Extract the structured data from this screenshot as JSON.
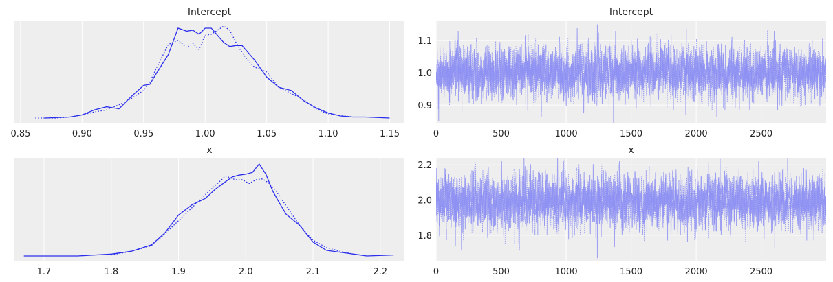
{
  "colors": {
    "background": "#eeeeee",
    "grid": "#ffffff",
    "line": "#2a2eec",
    "trace": "#8a8cf2"
  },
  "chart_data": [
    {
      "type": "line",
      "kind": "density",
      "title": "Intercept",
      "xlim": [
        0.845,
        1.162
      ],
      "xticks": [
        "0.85",
        "0.90",
        "0.95",
        "1.00",
        "1.05",
        "1.10",
        "1.15"
      ],
      "xtick_values": [
        0.85,
        0.9,
        0.95,
        1.0,
        1.05,
        1.1,
        1.15
      ],
      "y_ticks_shown": false,
      "series": [
        {
          "style": "solid",
          "x": [
            0.87,
            0.89,
            0.9,
            0.91,
            0.92,
            0.93,
            0.94,
            0.95,
            0.955,
            0.96,
            0.97,
            0.978,
            0.985,
            0.99,
            0.995,
            1.0,
            1.005,
            1.01,
            1.015,
            1.02,
            1.025,
            1.03,
            1.035,
            1.04,
            1.05,
            1.06,
            1.07,
            1.08,
            1.09,
            1.1,
            1.11,
            1.12,
            1.13,
            1.15
          ],
          "y": [
            0.0,
            0.01,
            0.03,
            0.08,
            0.11,
            0.09,
            0.21,
            0.32,
            0.33,
            0.43,
            0.62,
            0.88,
            0.85,
            0.86,
            0.82,
            0.88,
            0.88,
            0.81,
            0.74,
            0.7,
            0.71,
            0.71,
            0.64,
            0.57,
            0.4,
            0.3,
            0.27,
            0.17,
            0.1,
            0.05,
            0.02,
            0.01,
            0.01,
            0.0
          ]
        },
        {
          "style": "dotted",
          "x": [
            0.862,
            0.88,
            0.89,
            0.9,
            0.91,
            0.92,
            0.93,
            0.94,
            0.95,
            0.955,
            0.96,
            0.97,
            0.978,
            0.985,
            0.99,
            0.995,
            1.0,
            1.005,
            1.01,
            1.015,
            1.02,
            1.025,
            1.03,
            1.035,
            1.04,
            1.05,
            1.06,
            1.07,
            1.08,
            1.09,
            1.1,
            1.12
          ],
          "y": [
            0.0,
            0.0,
            0.01,
            0.03,
            0.06,
            0.08,
            0.13,
            0.19,
            0.27,
            0.35,
            0.48,
            0.72,
            0.76,
            0.69,
            0.73,
            0.67,
            0.81,
            0.82,
            0.86,
            0.9,
            0.86,
            0.74,
            0.64,
            0.56,
            0.5,
            0.45,
            0.3,
            0.24,
            0.18,
            0.09,
            0.04,
            0.01
          ]
        }
      ]
    },
    {
      "type": "line",
      "kind": "trace",
      "title": "Intercept",
      "xlim": [
        0,
        2999
      ],
      "ylim": [
        0.845,
        1.162
      ],
      "xticks": [
        "0",
        "500",
        "1000",
        "1500",
        "2000",
        "2500"
      ],
      "xtick_values": [
        0,
        500,
        1000,
        1500,
        2000,
        2500
      ],
      "yticks": [
        "0.9",
        "1.0",
        "1.1"
      ],
      "ytick_values": [
        0.9,
        1.0,
        1.1
      ],
      "n_draws": 3000,
      "chains": 2,
      "mean": 1.0,
      "sd": 0.038,
      "spikes": [
        [
          170,
          1.13
        ],
        [
          1240,
          1.15
        ],
        [
          1380,
          1.13
        ],
        [
          2600,
          1.13
        ],
        [
          20,
          0.85
        ],
        [
          1920,
          0.87
        ],
        [
          1330,
          0.89
        ],
        [
          2300,
          0.89
        ]
      ]
    },
    {
      "type": "line",
      "kind": "density",
      "title": "x",
      "xlim": [
        1.656,
        2.236
      ],
      "xticks": [
        "1.7",
        "1.8",
        "1.9",
        "2.0",
        "2.1",
        "2.2"
      ],
      "xtick_values": [
        1.7,
        1.8,
        1.9,
        2.0,
        2.1,
        2.2
      ],
      "y_ticks_shown": false,
      "series": [
        {
          "style": "solid",
          "x": [
            1.67,
            1.75,
            1.8,
            1.83,
            1.86,
            1.88,
            1.9,
            1.92,
            1.94,
            1.955,
            1.97,
            1.98,
            1.99,
            2.0,
            2.01,
            2.02,
            2.03,
            2.04,
            2.05,
            2.06,
            2.08,
            2.1,
            2.12,
            2.14,
            2.16,
            2.18,
            2.22
          ],
          "y": [
            0.0,
            0.0,
            0.02,
            0.05,
            0.12,
            0.25,
            0.44,
            0.55,
            0.62,
            0.72,
            0.8,
            0.85,
            0.87,
            0.88,
            0.9,
            0.99,
            0.88,
            0.7,
            0.57,
            0.45,
            0.33,
            0.15,
            0.06,
            0.04,
            0.02,
            0.0,
            0.01
          ]
        },
        {
          "style": "dotted",
          "x": [
            1.8,
            1.83,
            1.86,
            1.88,
            1.9,
            1.92,
            1.94,
            1.955,
            1.97,
            1.985,
            1.995,
            2.005,
            2.015,
            2.025,
            2.035,
            2.045,
            2.06,
            2.08,
            2.1,
            2.12,
            2.14,
            2.16,
            2.18
          ],
          "y": [
            0.01,
            0.05,
            0.11,
            0.24,
            0.38,
            0.52,
            0.66,
            0.76,
            0.86,
            0.82,
            0.82,
            0.78,
            0.82,
            0.83,
            0.78,
            0.7,
            0.54,
            0.33,
            0.17,
            0.09,
            0.05,
            0.02,
            0.0
          ]
        }
      ]
    },
    {
      "type": "line",
      "kind": "trace",
      "title": "x",
      "xlim": [
        0,
        2999
      ],
      "ylim": [
        1.655,
        2.236
      ],
      "xticks": [
        "0",
        "500",
        "1000",
        "1500",
        "2000",
        "2500"
      ],
      "xtick_values": [
        0,
        500,
        1000,
        1500,
        2000,
        2500
      ],
      "yticks": [
        "1.8",
        "2.0",
        "2.2"
      ],
      "ytick_values": [
        1.8,
        2.0,
        2.2
      ],
      "n_draws": 3000,
      "chains": 2,
      "mean": 1.99,
      "sd": 0.075,
      "spikes": [
        [
          980,
          2.22
        ],
        [
          1410,
          2.22
        ],
        [
          2480,
          2.22
        ],
        [
          1240,
          1.67
        ],
        [
          1780,
          1.77
        ],
        [
          2850,
          1.77
        ],
        [
          1270,
          1.79
        ]
      ]
    }
  ]
}
